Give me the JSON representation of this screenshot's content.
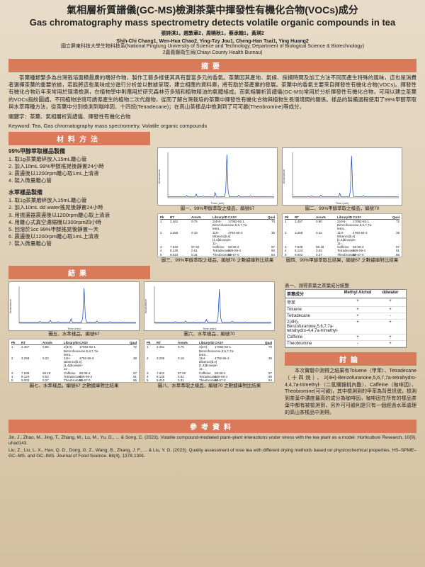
{
  "title_zh": "氣相層析質譜儀(GC-MS)檢測茶葉中揮發性有機化合物(VOCs)成分",
  "title_en": "Gas chromatography mass spectrometry detects volatile organic compounds in tea",
  "authors": "張詩淇1，趙敦華2，周曉秋1，蔡承翰1，黃瑛2",
  "authors_en": "Shih-Chi Chang1, Wen-Hua Chao2, Ying-Tzy Jou1, Cheng-Han Tsai1, Ying Huang2",
  "affil1": "國立屏東科技大學生物科技系(National Pingtung University of Science and Technology, Department of Biological Science & Biotechnology)",
  "affil2": "2嘉義縣衛生局(Chiayi County Health Bureau)",
  "sections": {
    "abstract": "摘要",
    "methods": "材料方法",
    "results": "結果",
    "discussion": "討論",
    "refs": "參考資料"
  },
  "abstract": "茶葉種類繁多為台灣栽培面積最廣的嗜好作物，製作工藝多樣使其具有豐富多元的香氣。茶葉因其產地、氣候、採摘時間及加工方法不同而產生特殊的風味，這也是消費者選擇茶葉的重要依據，若能將這些風味成分進行分析並以數據呈現，建立相應的資料庫，將有助於茶產業的發展。茶葉中的香氣主要來自揮發性有機化合物(VOCs)。揮發性有機化合物近年來常用於環境檢測，在植物學中則應用於研究森林芬多精和植物精油的氣體組成。而氣相層析質譜儀(GC-MS)常用於分析揮發性有機化合物，可用以建立茶葉的VOCs指紋圖譜。不同植物逆境可誘導產生的植物二次代謝物，從而了解台灣栽培的茶葉中揮發性有機化合物與植物生長環境間的關係。樣品的製備過程使用了99%甲醇萃取與水萃兩種方法，從茶葉中分別檢測到咖啡因、十四烷(Tetradecane)；在高山茶樣品中檢測到了可可鹼(Theobromine)等成分。",
  "keywords_zh": "關鍵字：茶葉、氣相層析質譜儀、揮發性有機化合物",
  "keywords_en": "Keyword: Tea, Gas chromatography mass spectrometry, Volatile organic compounds",
  "methods": {
    "m1_title": "99%甲醇萃取樣品製備",
    "m1_steps": [
      "1. 取1g茶葉磨碎放入15mL離心管",
      "2. 加入10mL 99%甲醇搖晃後靜置24小時",
      "3. 震盪後以1200rpm離心取1mL上清液",
      "4. 裝入微量離心管"
    ],
    "m2_title": "水萃樣品製備",
    "m2_steps": [
      "1. 取1g茶葉磨碎放入15mL離心管",
      "2. 加入10mL dd water搖晃後靜置24小時",
      "3. 用振盪器震盪後以1200rpm離心取上清液",
      "4. 用離心式真空濃縮機以300rpm四小時",
      "5. 回溶於1cc 99%甲醇搖晃後靜置一天",
      "6. 震盪後以1200rpm離心取1mL上清液",
      "7. 裝入微量離心管"
    ]
  },
  "chrom_style": {
    "bg": "#ffffff",
    "axis": "#333333",
    "line": "#1040c0",
    "grid": "#dddddd"
  },
  "chrom_captions": {
    "c1": "圖一、99%甲醇萃取之樣品，編號67",
    "c2": "圖二、99%甲醇萃取之樣品，編號70",
    "c3": "圖三、99%甲醇萃取之樣品，編號70\n之數據庫對比結果",
    "c4": "圖四、99%甲醇萃取比結果，編號67\n之數據庫對比結果",
    "c5": "圖五、水萃樣品，編號67",
    "c6": "圖六、水萃樣品，編號70",
    "c7": "圖七、水萃樣品，編號67\n之數據庫對比結果",
    "c8": "圖八、水萃萃取之樣品，編號70\n之數據庫對比結果"
  },
  "chrom_data": {
    "c67_peaks": [
      [
        8,
        5
      ],
      [
        12,
        8
      ],
      [
        15,
        4
      ],
      [
        20,
        12
      ],
      [
        25,
        95
      ],
      [
        30,
        6
      ],
      [
        35,
        4
      ],
      [
        40,
        3
      ]
    ],
    "c70_peaks": [
      [
        8,
        4
      ],
      [
        12,
        6
      ],
      [
        15,
        3
      ],
      [
        20,
        10
      ],
      [
        25,
        92
      ],
      [
        30,
        5
      ],
      [
        35,
        3
      ],
      [
        40,
        2
      ]
    ]
  },
  "library_cols": [
    "Pk",
    "RT",
    "Area%",
    "Library/ID",
    "CAS#",
    "Qual"
  ],
  "library67": [
    [
      "1",
      "2.457",
      "0.80",
      "2(4H)-Benzofuranone,5,6,7,7a-tetra...",
      "17092-92-1",
      "72"
    ],
    [
      "2",
      "3.258",
      "0.22",
      "11H-Dibenzo[b,e][1,4]dioxepin-11-...",
      "4792-66-3",
      "38"
    ],
    [
      "3",
      "7.639",
      "98.18",
      "Caffeine",
      "58-08-2",
      "97"
    ],
    [
      "4",
      "8.124",
      "0.53",
      "Tetradecane",
      "629-59-4",
      "91"
    ],
    [
      "5",
      "9.002",
      "0.27",
      "Theobromine",
      "83-67-0",
      "86"
    ]
  ],
  "library70": [
    [
      "1",
      "2.461",
      "0.75",
      "2(4H)-Benzofuranone,5,6,7,7a-tetra...",
      "17092-92-1",
      "70"
    ],
    [
      "2",
      "3.255",
      "0.19",
      "11H-Dibenzo[b,e][1,4]dioxepin-11-...",
      "4792-66-3",
      "35"
    ],
    [
      "3",
      "7.642",
      "97.92",
      "Caffeine",
      "58-08-2",
      "97"
    ],
    [
      "4",
      "8.130",
      "0.61",
      "Tetradecane",
      "629-59-4",
      "90"
    ],
    [
      "5",
      "9.010",
      "0.31",
      "Theobromine",
      "83-67-0",
      "84"
    ],
    [
      "6",
      "10.22",
      "0.22",
      "Toluene",
      "108-88-3",
      "78"
    ]
  ],
  "table1": {
    "caption": "表一、測得茶葉之茶葉成分統整",
    "cols": [
      "茶葉成分",
      "Methyl Alchol",
      "ddwater"
    ],
    "rows": [
      [
        "甲苯",
        "+",
        "+"
      ],
      [
        "Toluene",
        "+",
        "+"
      ],
      [
        "Tetradecane",
        "+",
        "-"
      ],
      [
        "2(4H)-Benzofuranone,5,6,7,7a-tetrahydro-4,4,7a-trimethyl-",
        "+",
        "+"
      ],
      [
        "Caffeine",
        "+",
        "+"
      ],
      [
        "Theobromine",
        "-",
        "+"
      ]
    ]
  },
  "discussion": "本次實驗中測得之結果有Toluene（甲苯）、Tetradecane（十四烷）、2(4H)-Benzofuranone,5,6,7,7a-tetrahydro-4,4,7a-trimethyl-（二氫獼猴桃內酯）、Caffeine（咖啡因）、Theobromine(可可鹼)，其中檢測到的甲苯為背景訊號，檢測到茶葉中濃度最高的成分為咖啡因，咖啡因在所有的樣品茶葉中都有被檢測到，另外可可鹼則是只有一個經過水萃處理的高山茶樣品中測得。",
  "refs": [
    "Jin, J., Zhao, M., Jing, T., Zhang, M., Lu, M., Yu, G., ... & Song, C. (2023). Volatile compound-mediated plant–plant interactions under stress with the tea plant as a model. Horticulture Research, 10(9), uhad143.",
    "Liu, Z., Liu, L. X., Han, Q. D., Dong, G. Z., Wang, B., Zhang, J. F., ... & Liu, Y. G. (2023). Quality assessment of rose tea with different drying methods based on physicochemical properties, HS–SPME–GC–MS, and GC–IMS. Journal of Food Science, 88(4), 1378-1391."
  ],
  "colors": {
    "section_bar": "#d97a5a",
    "bg_top": "#e8dcc8",
    "bg_bot": "#d4c0a0"
  }
}
